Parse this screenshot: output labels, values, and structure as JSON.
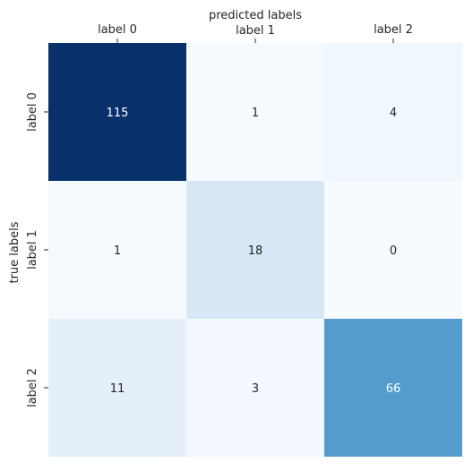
{
  "chart_data": {
    "type": "heatmap",
    "xlabel": "predicted labels",
    "ylabel": "true labels",
    "x_tick_labels": [
      "label 0",
      "label 1",
      "label 2"
    ],
    "y_tick_labels": [
      "label 0",
      "label 1",
      "label 2"
    ],
    "values": [
      [
        115,
        1,
        4
      ],
      [
        1,
        18,
        0
      ],
      [
        11,
        3,
        66
      ]
    ],
    "colormap": "Blues",
    "vmin": 0,
    "vmax": 115,
    "x_axis_position": "top",
    "colorbar": false,
    "annotations": true
  }
}
